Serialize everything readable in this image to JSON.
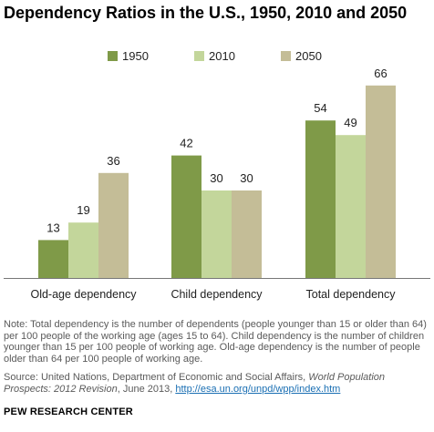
{
  "title": "Dependency Ratios in the U.S., 1950, 2010 and 2050",
  "note": "Note: Total dependency is the number of dependents (people younger than 15 or older than 64) per 100 people of the working age (ages 15 to 64). Child dependency is the number of children younger than 15 per 100 people of working age. Old-age dependency is the number of people older than 64 per 100 people of working age.",
  "source": {
    "prefix": "Source: United Nations, Department of Economic and Social Affairs, ",
    "italic": "World Population Prospects: 2012 Revision",
    "middle": ", June 2013, ",
    "link": "http://esa.un.org/unpd/wpp/index.htm"
  },
  "brand": "PEW RESEARCH CENTER",
  "colors": {
    "1950": "#7f9a48",
    "2010": "#c3d69b",
    "2050": "#c4bd97",
    "axis": "#777777"
  },
  "chart_data": {
    "type": "bar",
    "categories": [
      "Old-age dependency",
      "Child dependency",
      "Total dependency"
    ],
    "series": [
      {
        "name": "1950",
        "values": [
          13,
          42,
          54
        ]
      },
      {
        "name": "2010",
        "values": [
          19,
          30,
          49
        ]
      },
      {
        "name": "2050",
        "values": [
          36,
          30,
          66
        ]
      }
    ],
    "legend": "top",
    "grid": false,
    "ylim": [
      0,
      66
    ]
  }
}
